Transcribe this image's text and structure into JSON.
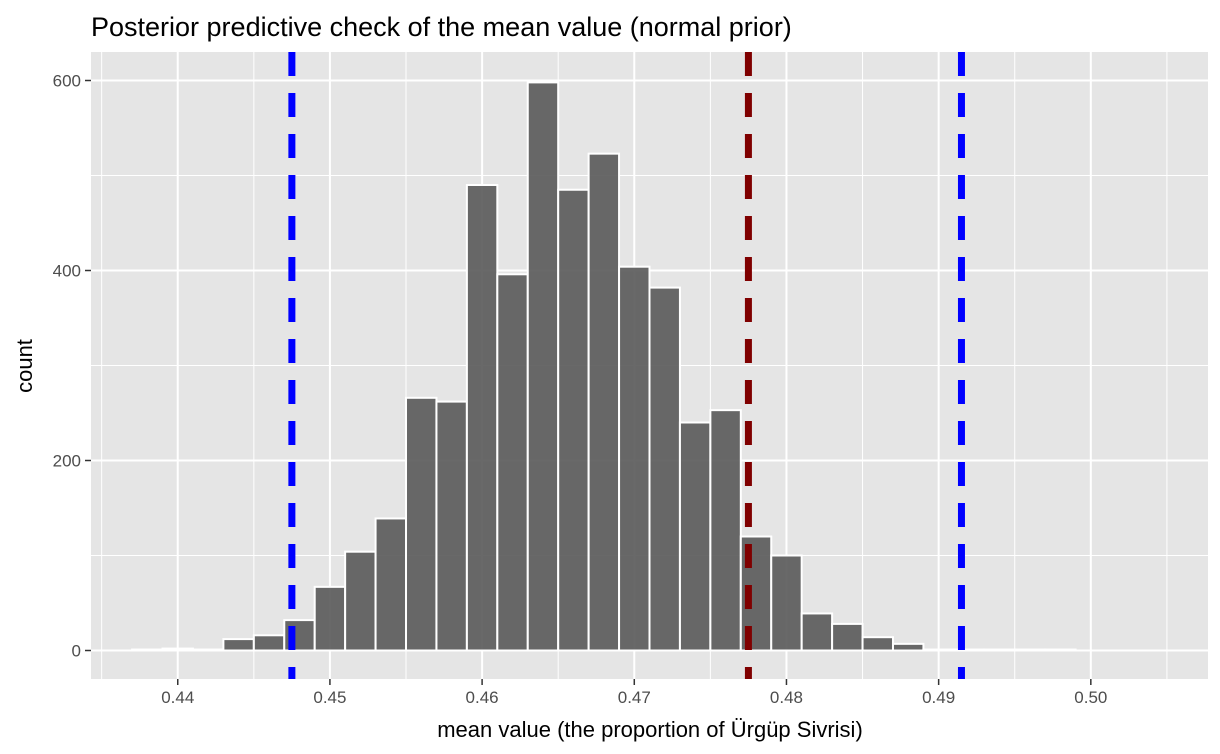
{
  "chart_data": {
    "type": "bar",
    "title": "Posterior predictive check of the mean value (normal prior)",
    "xlabel": "mean value (the proportion of Ürgüp Sivrisi)",
    "ylabel": "count",
    "xlim": [
      0.4343,
      0.5077
    ],
    "ylim": [
      -30,
      630
    ],
    "x_ticks": [
      0.44,
      0.45,
      0.46,
      0.47,
      0.48,
      0.49,
      0.5
    ],
    "x_tick_labels": [
      "0.44",
      "0.45",
      "0.46",
      "0.47",
      "0.48",
      "0.49",
      "0.50"
    ],
    "y_ticks": [
      0,
      200,
      400,
      600
    ],
    "y_tick_labels": [
      "0",
      "200",
      "400",
      "600"
    ],
    "grid": true,
    "bin_width": 0.002,
    "bins": [
      {
        "x": 0.438,
        "count": 1
      },
      {
        "x": 0.44,
        "count": 2
      },
      {
        "x": 0.442,
        "count": 1
      },
      {
        "x": 0.444,
        "count": 12
      },
      {
        "x": 0.446,
        "count": 16
      },
      {
        "x": 0.448,
        "count": 32
      },
      {
        "x": 0.45,
        "count": 67
      },
      {
        "x": 0.452,
        "count": 104
      },
      {
        "x": 0.454,
        "count": 139
      },
      {
        "x": 0.456,
        "count": 266
      },
      {
        "x": 0.458,
        "count": 262
      },
      {
        "x": 0.46,
        "count": 490
      },
      {
        "x": 0.462,
        "count": 396
      },
      {
        "x": 0.464,
        "count": 598
      },
      {
        "x": 0.466,
        "count": 485
      },
      {
        "x": 0.468,
        "count": 523
      },
      {
        "x": 0.47,
        "count": 404
      },
      {
        "x": 0.472,
        "count": 382
      },
      {
        "x": 0.474,
        "count": 240
      },
      {
        "x": 0.476,
        "count": 253
      },
      {
        "x": 0.478,
        "count": 120
      },
      {
        "x": 0.48,
        "count": 100
      },
      {
        "x": 0.482,
        "count": 39
      },
      {
        "x": 0.484,
        "count": 28
      },
      {
        "x": 0.486,
        "count": 14
      },
      {
        "x": 0.488,
        "count": 7
      },
      {
        "x": 0.49,
        "count": 1
      },
      {
        "x": 0.492,
        "count": 1
      },
      {
        "x": 0.494,
        "count": 1
      },
      {
        "x": 0.496,
        "count": 1
      },
      {
        "x": 0.498,
        "count": 1
      }
    ],
    "vlines": [
      {
        "name": "interval-lower-line",
        "x": 0.4475,
        "color": "#0000ff"
      },
      {
        "name": "observed-mean-line",
        "x": 0.4775,
        "color": "#7f0000"
      },
      {
        "name": "interval-upper-line",
        "x": 0.4915,
        "color": "#0000ff"
      }
    ],
    "colors": {
      "panel": "#e5e5e5",
      "grid": "#ffffff",
      "bar_fill": "#595959",
      "bar_outline": "#ffffff"
    }
  }
}
